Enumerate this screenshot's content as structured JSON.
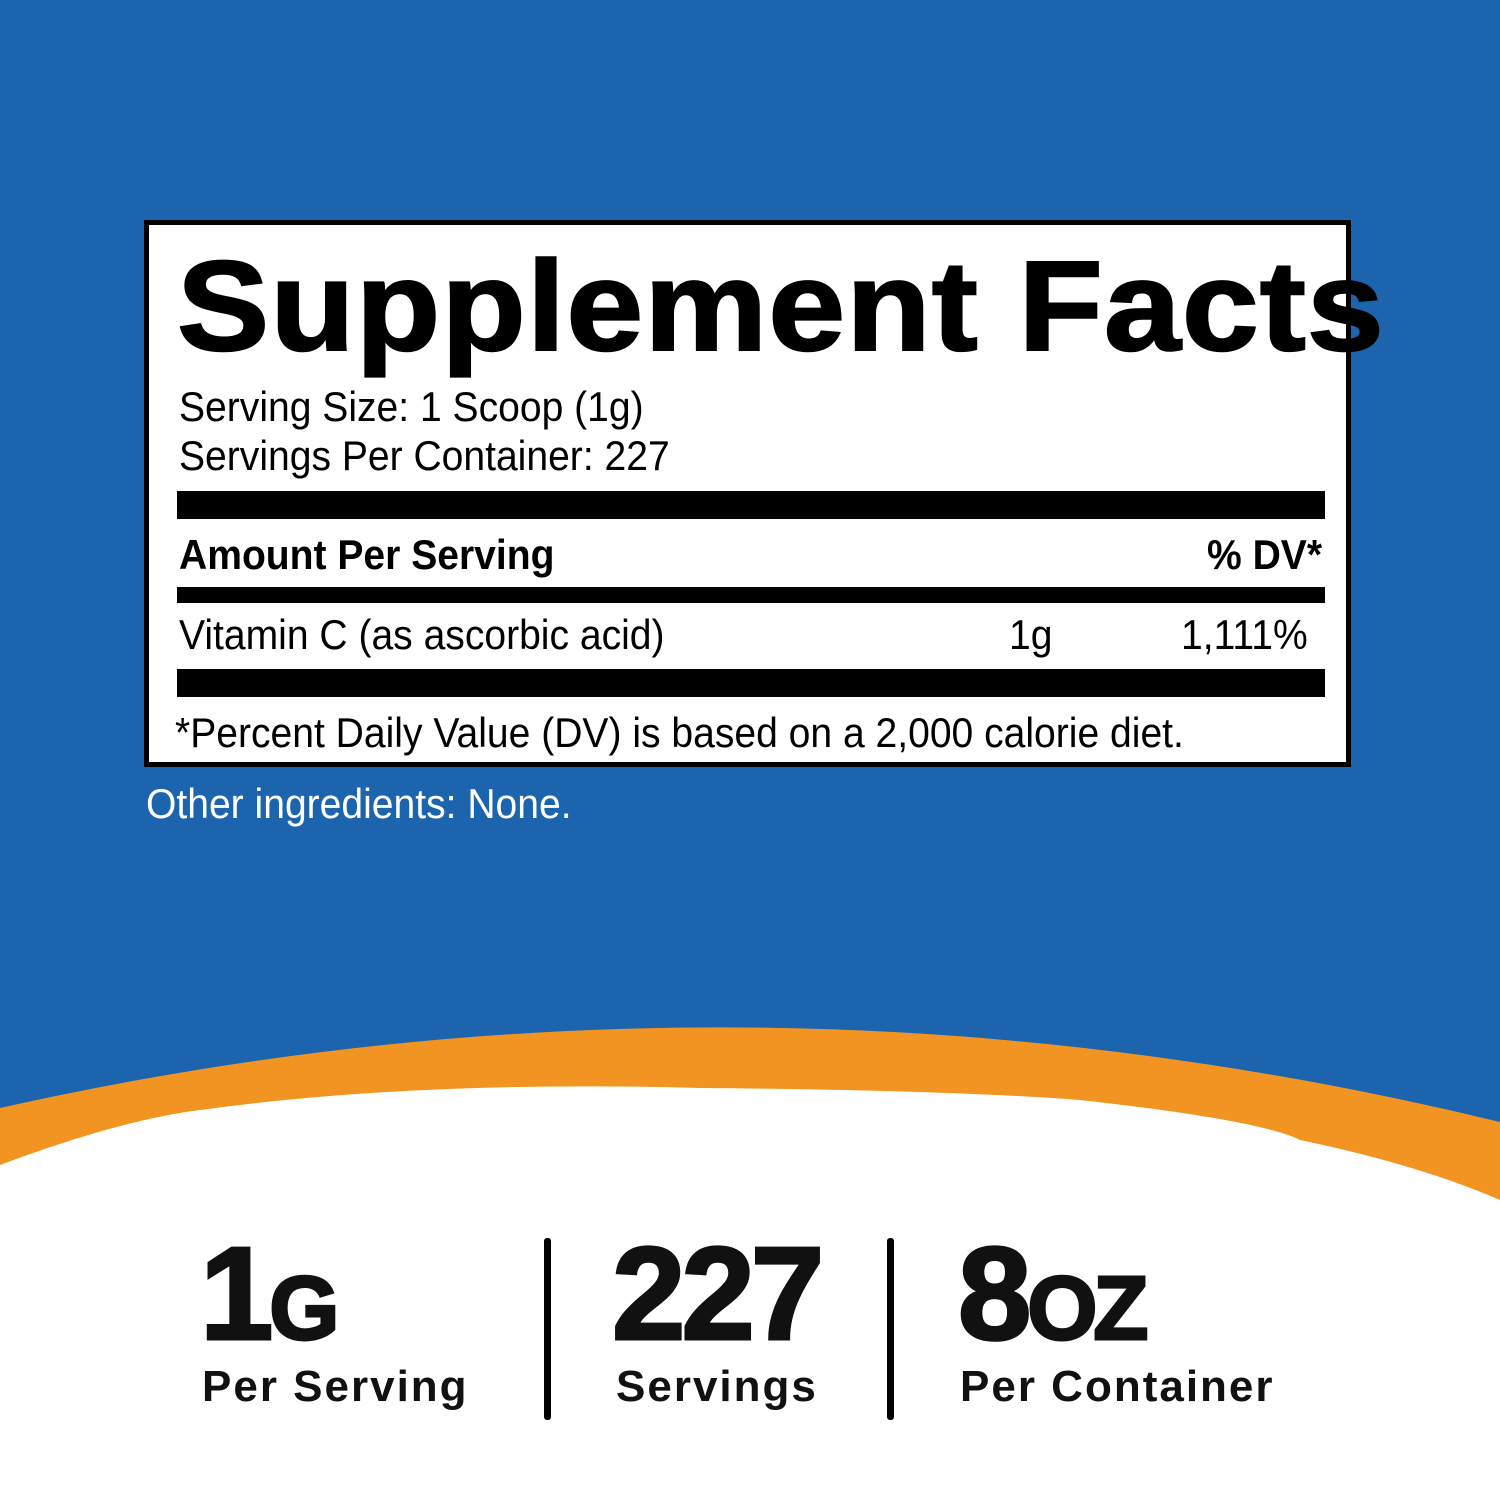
{
  "colors": {
    "background_blue": "#1c64ae",
    "swoosh_orange": "#f29422",
    "white": "#ffffff"
  },
  "panel": {
    "title": "Supplement Facts",
    "serving_size": "Serving Size: 1 Scoop (1g)",
    "servings_per_container": "Servings Per Container: 227",
    "amount_header": "Amount Per Serving",
    "dv_header": "% DV*",
    "nutrients": [
      {
        "name": "Vitamin C (as ascorbic acid)",
        "amount": "1g",
        "dv": "1,111%"
      }
    ],
    "footnote": "*Percent Daily Value (DV) is based on a 2,000 calorie diet."
  },
  "other_ingredients": "Other ingredients: None.",
  "stats": [
    {
      "value": "1",
      "unit": "G",
      "label": "Per Serving"
    },
    {
      "value": "227",
      "unit": "",
      "label": "Servings"
    },
    {
      "value": "8",
      "unit": "OZ",
      "label": "Per Container"
    }
  ]
}
